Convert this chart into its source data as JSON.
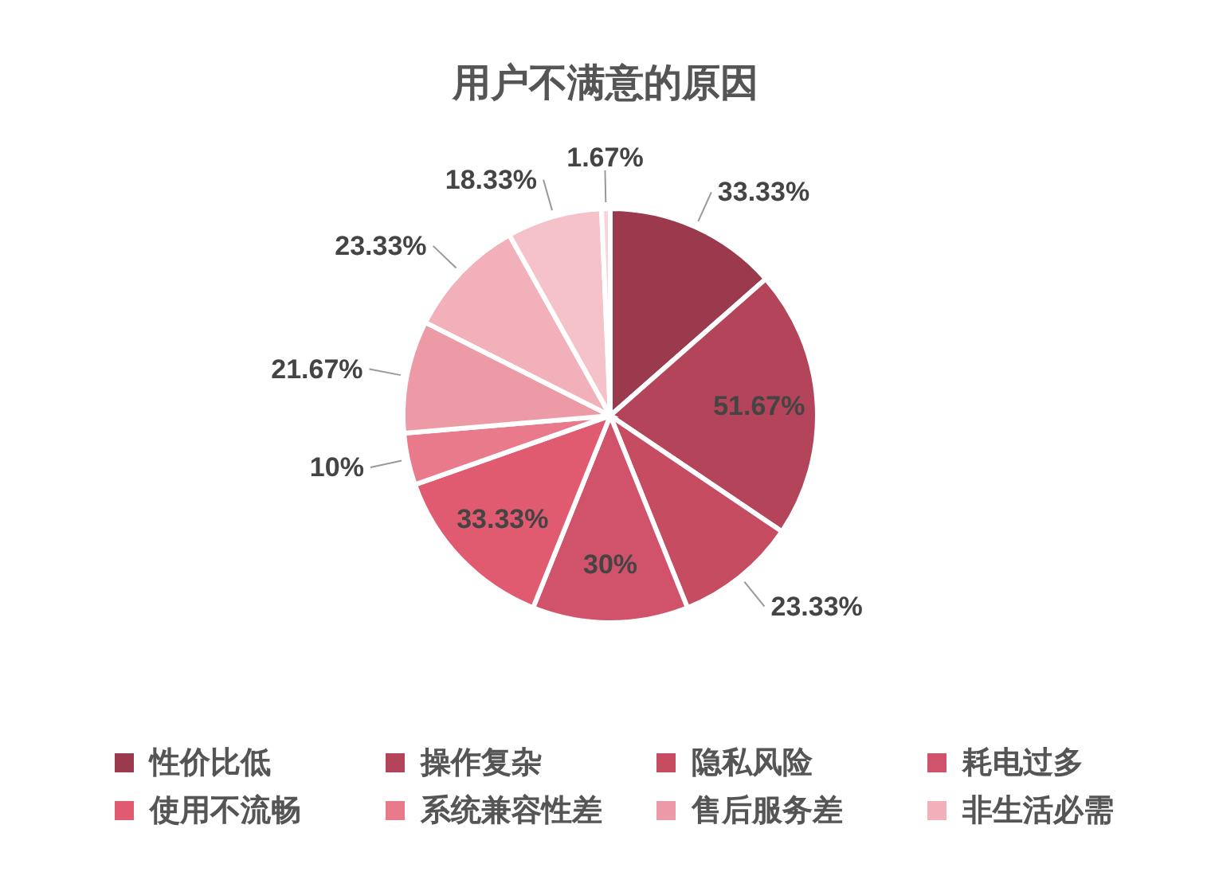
{
  "chart_data": {
    "type": "pie",
    "title": "用户不满意的原因",
    "categories": [
      "性价比低",
      "操作复杂",
      "隐私风险",
      "耗电过多",
      "使用不流畅",
      "系统兼容性差",
      "售后服务差",
      "非生活必需",
      null,
      null
    ],
    "values": [
      33.33,
      51.67,
      23.33,
      30,
      33.33,
      10,
      21.67,
      23.33,
      18.33,
      1.67
    ],
    "colors": [
      "#9b3a4d",
      "#b3445a",
      "#c64c62",
      "#d1536b",
      "#e05a70",
      "#e87a8b",
      "#ec9aa6",
      "#f1b0ba",
      "#f5c2ca",
      "#f7d4d9"
    ],
    "value_labels": [
      "33.33%",
      "51.67%",
      "23.33%",
      "30%",
      "33.33%",
      "10%",
      "21.67%",
      "23.33%",
      "18.33%",
      "1.67%"
    ],
    "legend": "bottom"
  }
}
